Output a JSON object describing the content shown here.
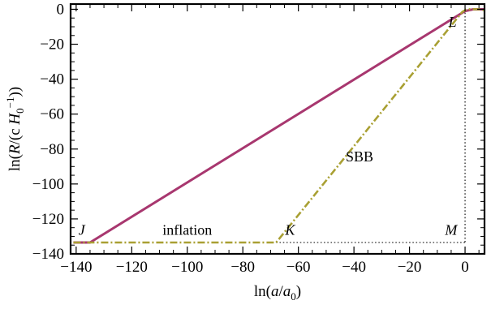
{
  "chart_data": {
    "type": "line",
    "title": "",
    "xlabel_parts": [
      "ln(",
      "a",
      "/",
      "a",
      "0",
      ")"
    ],
    "ylabel_parts": [
      "ln(",
      "R",
      "/(c ",
      "H",
      "0",
      "−1",
      "))"
    ],
    "xlim": [
      -142,
      7
    ],
    "ylim": [
      -140,
      3
    ],
    "x_ticks": [
      {
        "value": -140,
        "label": "−140"
      },
      {
        "value": -120,
        "label": "−120"
      },
      {
        "value": -100,
        "label": "−100"
      },
      {
        "value": -80,
        "label": "−80"
      },
      {
        "value": -60,
        "label": "−60"
      },
      {
        "value": -40,
        "label": "−40"
      },
      {
        "value": -20,
        "label": "−20"
      },
      {
        "value": 0,
        "label": "0"
      }
    ],
    "y_ticks": [
      {
        "value": 0,
        "label": "0"
      },
      {
        "value": -20,
        "label": "−20"
      },
      {
        "value": -40,
        "label": "−40"
      },
      {
        "value": -60,
        "label": "−60"
      },
      {
        "value": -80,
        "label": "−80"
      },
      {
        "value": -100,
        "label": "−100"
      },
      {
        "value": -120,
        "label": "−120"
      },
      {
        "value": -140,
        "label": "−140"
      }
    ],
    "grid": false,
    "series": [
      {
        "color": "#a8376f",
        "style": "solid",
        "points": [
          [
            -141,
            -133.5
          ],
          [
            -135,
            -133.5
          ],
          [
            0,
            -1
          ],
          [
            3,
            0
          ],
          [
            7,
            0
          ]
        ]
      },
      {
        "color": "#a9a033",
        "style": "dash-dot",
        "points": [
          [
            -141,
            -133.5
          ],
          [
            -68,
            -133.5
          ],
          [
            -1,
            -1.5
          ],
          [
            0.5,
            0
          ],
          [
            5,
            0
          ],
          [
            7,
            -0.5
          ]
        ]
      }
    ],
    "reference_lines": [
      {
        "points": [
          [
            0,
            0
          ],
          [
            0,
            -133.5
          ]
        ],
        "style": "dotted"
      },
      {
        "points": [
          [
            -68,
            -133.5
          ],
          [
            0,
            -133.5
          ]
        ],
        "style": "dotted"
      }
    ],
    "annotations": [
      {
        "text": "J",
        "x": -138,
        "y": -129,
        "italic": true
      },
      {
        "text": "inflation",
        "x": -100,
        "y": -129,
        "italic": false
      },
      {
        "text": "K",
        "x": -63,
        "y": -129,
        "italic": true
      },
      {
        "text": "SBB",
        "x": -38,
        "y": -87,
        "italic": false
      },
      {
        "text": "M",
        "x": -5,
        "y": -129,
        "italic": true
      },
      {
        "text": "L",
        "x": -4.5,
        "y": -10,
        "italic": true
      }
    ]
  }
}
